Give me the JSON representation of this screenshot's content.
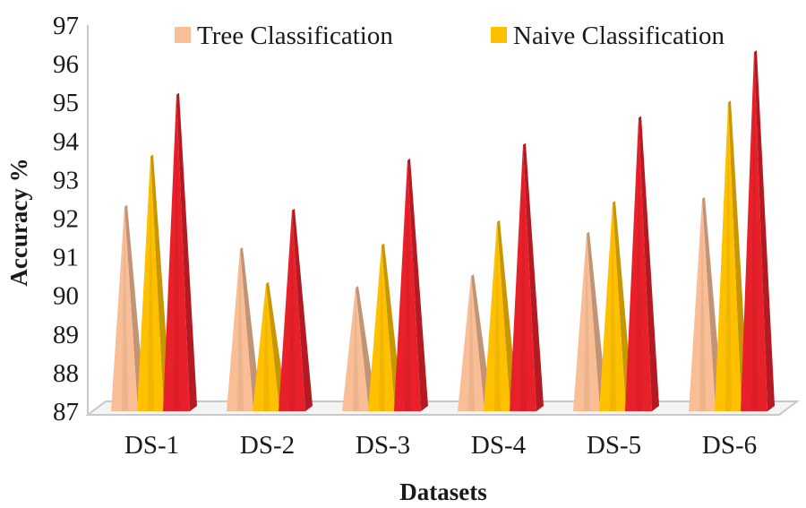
{
  "chart_data": {
    "type": "bar",
    "style": "3d-cone",
    "title": "",
    "xlabel": "Datasets",
    "ylabel": "Accuracy %",
    "ylim": [
      87,
      97
    ],
    "yticks": [
      87,
      88,
      89,
      90,
      91,
      92,
      93,
      94,
      95,
      96,
      97
    ],
    "categories": [
      "DS-1",
      "DS-2",
      "DS-3",
      "DS-4",
      "DS-5",
      "DS-6"
    ],
    "series": [
      {
        "name": "Tree Classification",
        "color": "#F9BE96",
        "values": [
          92.3,
          91.2,
          90.2,
          90.5,
          91.6,
          92.5
        ]
      },
      {
        "name": "Naive Classification",
        "color": "#FFC000",
        "values": [
          93.6,
          90.3,
          91.3,
          91.9,
          92.4,
          95.0
        ]
      },
      {
        "name": "",
        "color": "#E8202A",
        "values": [
          95.2,
          92.2,
          93.5,
          93.9,
          94.6,
          96.3
        ]
      }
    ],
    "legend": {
      "position": "top",
      "entries": [
        "Tree Classification",
        "Naive Classification"
      ]
    }
  }
}
